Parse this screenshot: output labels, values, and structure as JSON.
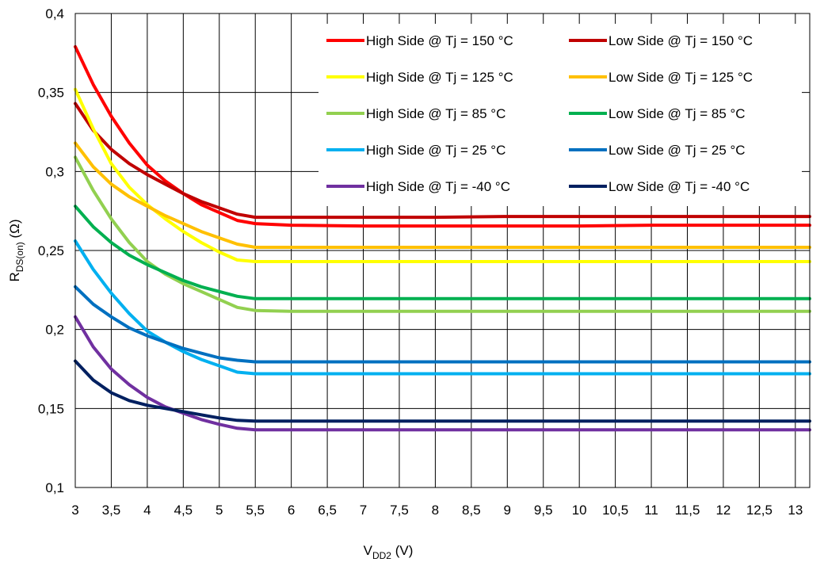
{
  "chart_data": {
    "type": "line",
    "xlabel": {
      "main": "V",
      "sub": "DD2",
      "unit": " (V)"
    },
    "ylabel": {
      "main": "R",
      "sub": "DS(on)",
      "unit": " (Ω)"
    },
    "xlim": [
      3,
      13.2
    ],
    "ylim": [
      0.1,
      0.4
    ],
    "x_ticks": [
      "3",
      "3,5",
      "4",
      "4,5",
      "5",
      "5,5",
      "6",
      "6,5",
      "7",
      "7,5",
      "8",
      "8,5",
      "9",
      "9,5",
      "10",
      "10,5",
      "11",
      "11,5",
      "12",
      "12,5",
      "13"
    ],
    "x_tick_values": [
      3,
      3.5,
      4,
      4.5,
      5,
      5.5,
      6,
      6.5,
      7,
      7.5,
      8,
      8.5,
      9,
      9.5,
      10,
      10.5,
      11,
      11.5,
      12,
      12.5,
      13
    ],
    "y_ticks": [
      "0,1",
      "0,15",
      "0,2",
      "0,25",
      "0,3",
      "0,35",
      "0,4"
    ],
    "y_tick_values": [
      0.1,
      0.15,
      0.2,
      0.25,
      0.3,
      0.35,
      0.4
    ],
    "grid": true,
    "legend_position": "top-right",
    "x": [
      3,
      3.25,
      3.5,
      3.75,
      4,
      4.25,
      4.5,
      4.75,
      5,
      5.25,
      5.5,
      6,
      7,
      8,
      9,
      10,
      11,
      12,
      13,
      13.2
    ],
    "series": [
      {
        "name": "High Side @ Tj = 150 °C",
        "color": "#ff0000",
        "values": [
          0.379,
          0.355,
          0.335,
          0.318,
          0.304,
          0.294,
          0.286,
          0.279,
          0.274,
          0.269,
          0.267,
          0.266,
          0.2655,
          0.2655,
          0.2655,
          0.2655,
          0.266,
          0.266,
          0.266,
          0.266
        ]
      },
      {
        "name": "Low Side @ Tj = 150 °C",
        "color": "#c00000",
        "values": [
          0.343,
          0.326,
          0.314,
          0.305,
          0.298,
          0.292,
          0.286,
          0.281,
          0.277,
          0.273,
          0.271,
          0.271,
          0.271,
          0.271,
          0.2715,
          0.2715,
          0.2715,
          0.2715,
          0.2715,
          0.2715
        ]
      },
      {
        "name": "High Side @ Tj = 125 °C",
        "color": "#ffff00",
        "values": [
          0.352,
          0.327,
          0.305,
          0.29,
          0.279,
          0.27,
          0.262,
          0.255,
          0.249,
          0.244,
          0.243,
          0.243,
          0.243,
          0.243,
          0.243,
          0.243,
          0.243,
          0.243,
          0.243,
          0.243
        ]
      },
      {
        "name": "Low Side @ Tj = 125 °C",
        "color": "#ffc000",
        "values": [
          0.318,
          0.303,
          0.292,
          0.284,
          0.278,
          0.272,
          0.267,
          0.262,
          0.258,
          0.254,
          0.252,
          0.252,
          0.252,
          0.252,
          0.252,
          0.252,
          0.252,
          0.252,
          0.252,
          0.252
        ]
      },
      {
        "name": "High Side @ Tj = 85 °C",
        "color": "#92d050",
        "values": [
          0.309,
          0.288,
          0.27,
          0.255,
          0.243,
          0.235,
          0.229,
          0.224,
          0.219,
          0.214,
          0.212,
          0.2115,
          0.2115,
          0.2115,
          0.2115,
          0.2115,
          0.2115,
          0.2115,
          0.2115,
          0.2115
        ]
      },
      {
        "name": "Low Side @ Tj = 85 °C",
        "color": "#00b050",
        "values": [
          0.278,
          0.265,
          0.255,
          0.247,
          0.241,
          0.236,
          0.231,
          0.227,
          0.224,
          0.221,
          0.2195,
          0.2195,
          0.2195,
          0.2195,
          0.2195,
          0.2195,
          0.2195,
          0.2195,
          0.2195,
          0.2195
        ]
      },
      {
        "name": "High Side @ Tj = 25 °C",
        "color": "#00b0f0",
        "values": [
          0.256,
          0.238,
          0.223,
          0.21,
          0.199,
          0.192,
          0.186,
          0.181,
          0.177,
          0.173,
          0.172,
          0.172,
          0.172,
          0.172,
          0.172,
          0.172,
          0.172,
          0.172,
          0.172,
          0.172
        ]
      },
      {
        "name": "Low Side @ Tj = 25 °C",
        "color": "#0070c0",
        "values": [
          0.227,
          0.216,
          0.208,
          0.201,
          0.196,
          0.192,
          0.188,
          0.185,
          0.182,
          0.1805,
          0.1795,
          0.1795,
          0.1795,
          0.1795,
          0.1795,
          0.1795,
          0.1795,
          0.1795,
          0.1795,
          0.1795
        ]
      },
      {
        "name": "High Side @ Tj = -40 °C",
        "color": "#7030a0",
        "values": [
          0.208,
          0.189,
          0.175,
          0.165,
          0.157,
          0.151,
          0.147,
          0.143,
          0.14,
          0.1375,
          0.1365,
          0.1365,
          0.1365,
          0.1365,
          0.1365,
          0.1365,
          0.1365,
          0.1365,
          0.1365,
          0.1365
        ]
      },
      {
        "name": "Low Side @ Tj = -40 °C",
        "color": "#002060",
        "values": [
          0.18,
          0.168,
          0.16,
          0.155,
          0.152,
          0.15,
          0.148,
          0.146,
          0.144,
          0.1425,
          0.142,
          0.142,
          0.142,
          0.142,
          0.142,
          0.142,
          0.142,
          0.142,
          0.142,
          0.142
        ]
      }
    ]
  }
}
